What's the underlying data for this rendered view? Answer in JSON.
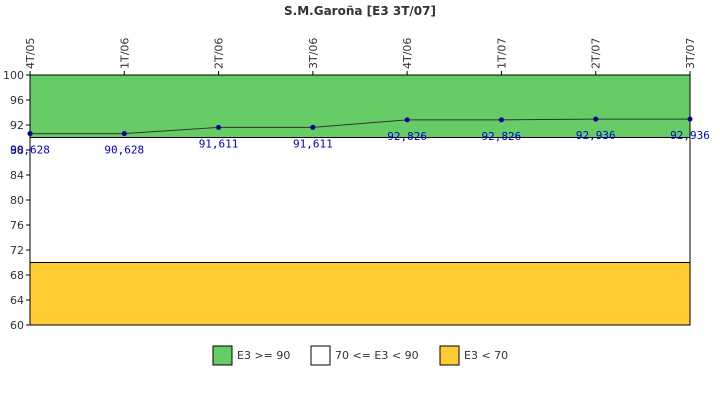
{
  "chart_data": {
    "type": "line",
    "title": "S.M.Garoña [E3 3T/07]",
    "categories": [
      "4T/05",
      "1T/06",
      "2T/06",
      "3T/06",
      "4T/06",
      "1T/07",
      "2T/07",
      "3T/07"
    ],
    "series": [
      {
        "values": [
          90.628,
          90.628,
          91.611,
          91.611,
          92.826,
          92.826,
          92.936,
          92.936
        ],
        "labels": [
          "90,628",
          "90,628",
          "91,611",
          "91,611",
          "92,826",
          "92,826",
          "92,936",
          "92,936"
        ],
        "color": "#000099"
      }
    ],
    "ylim": [
      60,
      100
    ],
    "yticks": [
      60,
      64,
      68,
      72,
      76,
      80,
      84,
      88,
      92,
      96,
      100
    ],
    "bands": [
      {
        "label": "E3 >= 90",
        "from": 90,
        "to": 100,
        "color": "#66cc66"
      },
      {
        "label": "70 <= E3 < 90",
        "from": 70,
        "to": 90,
        "color": "#ffffff"
      },
      {
        "label": "E3 < 70",
        "from": 60,
        "to": 70,
        "color": "#ffcc33"
      }
    ],
    "legend_position": "bottom",
    "grid": false
  }
}
